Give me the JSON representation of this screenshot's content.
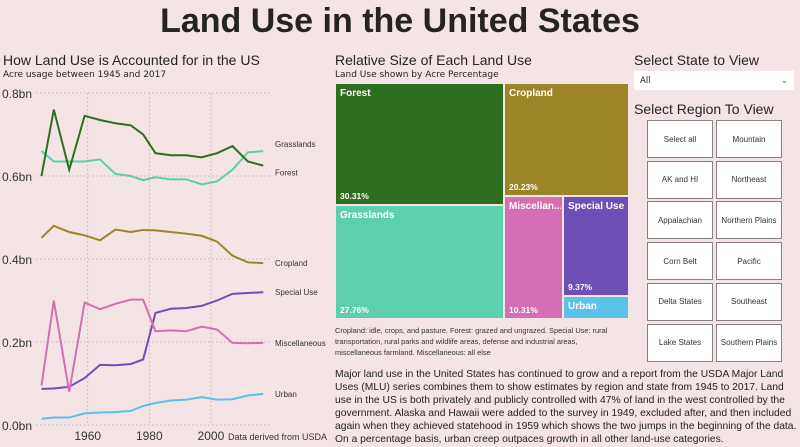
{
  "title": "Land Use in the United States",
  "colors": {
    "background": "#f4e4e6",
    "Forest": "#2e6e1f",
    "Grasslands": "#5ecfad",
    "Cropland": "#9c8428",
    "Special Use": "#6e4fb6",
    "Miscellaneous": "#d46fb6",
    "Urban": "#5bc2ea"
  },
  "chart_data": [
    {
      "type": "line",
      "title": "How Land Use is Accounted for in the US",
      "subtitle": "Acre usage between 1945 and 2017",
      "note": "Data derived from USDA",
      "x": [
        1945,
        1949,
        1954,
        1959,
        1964,
        1969,
        1974,
        1978,
        1982,
        1987,
        1992,
        1997,
        2002,
        2007,
        2012,
        2017
      ],
      "xticks": [
        "1960",
        "1980",
        "2000"
      ],
      "yticks": [
        "0.0bn",
        "0.2bn",
        "0.4bn",
        "0.6bn",
        "0.8bn"
      ],
      "ylim": [
        0,
        0.8
      ],
      "grid": true,
      "legend": "end-of-line labels",
      "series": [
        {
          "name": "Grasslands",
          "values": [
            0.66,
            0.635,
            0.635,
            0.635,
            0.64,
            0.605,
            0.6,
            0.59,
            0.597,
            0.592,
            0.592,
            0.58,
            0.587,
            0.615,
            0.657,
            0.66
          ]
        },
        {
          "name": "Forest",
          "values": [
            0.6,
            0.76,
            0.615,
            0.745,
            0.735,
            0.727,
            0.722,
            0.7,
            0.655,
            0.65,
            0.65,
            0.645,
            0.655,
            0.672,
            0.635,
            0.625
          ]
        },
        {
          "name": "Cropland",
          "values": [
            0.451,
            0.48,
            0.465,
            0.457,
            0.445,
            0.471,
            0.465,
            0.47,
            0.469,
            0.465,
            0.461,
            0.456,
            0.442,
            0.408,
            0.392,
            0.39
          ]
        },
        {
          "name": "Special Use",
          "values": [
            0.087,
            0.088,
            0.092,
            0.113,
            0.145,
            0.144,
            0.147,
            0.158,
            0.27,
            0.28,
            0.282,
            0.287,
            0.3,
            0.316,
            0.318,
            0.32
          ]
        },
        {
          "name": "Miscellaneous",
          "values": [
            0.095,
            0.3,
            0.08,
            0.295,
            0.279,
            0.292,
            0.302,
            0.302,
            0.226,
            0.228,
            0.226,
            0.237,
            0.23,
            0.198,
            0.197,
            0.198
          ]
        },
        {
          "name": "Urban",
          "values": [
            0.015,
            0.018,
            0.018,
            0.028,
            0.03,
            0.031,
            0.034,
            0.046,
            0.053,
            0.059,
            0.061,
            0.067,
            0.061,
            0.062,
            0.071,
            0.075
          ]
        }
      ]
    },
    {
      "type": "treemap",
      "title": "Relative Size of Each Land Use",
      "subtitle": "Land Use shown by Acre Percentage",
      "items": [
        {
          "name": "Forest",
          "label": "Forest",
          "pct": "30.31%"
        },
        {
          "name": "Grasslands",
          "label": "Grasslands",
          "pct": "27.76%"
        },
        {
          "name": "Cropland",
          "label": "Cropland",
          "pct": "20.23%"
        },
        {
          "name": "Miscellaneous",
          "label": "Miscellan...",
          "pct": "10.31%"
        },
        {
          "name": "Special Use",
          "label": "Special Use",
          "pct": "9.37%"
        },
        {
          "name": "Urban",
          "label": "Urban",
          "pct": ""
        }
      ],
      "note": "Cropland: idle, crops, and pasture. Forest: grazed and ungrazed. Special Use: rural transportation, rural parks and wildlife areas, defense and industrial areas, miscellaneous farmland. Miscellaneous: all else"
    }
  ],
  "state_filter": {
    "label": "Select State to View",
    "value": "All"
  },
  "region_filter": {
    "label": "Select Region To View",
    "options": [
      "Select all",
      "Mountain",
      "AK and HI",
      "Northeast",
      "Appalachian",
      "Northern Plains",
      "Corn Belt",
      "Pacific",
      "Delta States",
      "Southeast",
      "Lake States",
      "Southern Plains"
    ]
  },
  "story": "Major land use in the United States has continued to grow and a report from the USDA Major Land Uses (MLU) series combines them to show estimates by region and state from 1945 to 2017. Land use in the US is both privately and publicly controlled with 47% of land in the west controlled by the government. Alaska and Hawaii were added to the survey in 1949, excluded after, and then included again when they achieved statehood in 1959 which shows the two jumps in the beginning of the data. On a percentage basis, urban creep outpaces growth in all other land-use categories."
}
